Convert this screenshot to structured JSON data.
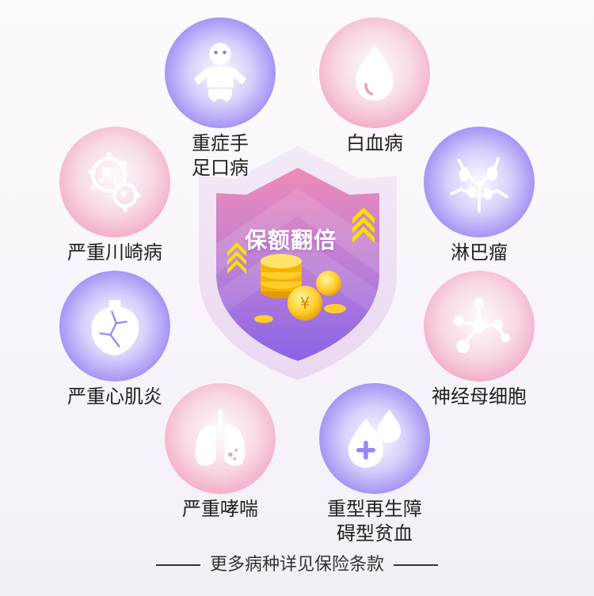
{
  "shield": {
    "title": "保额翻倍"
  },
  "items": [
    {
      "line1": "重症手",
      "line2": "足口病",
      "icon": "baby-icon"
    },
    {
      "line1": "白血病",
      "line2": "",
      "icon": "blood-drop-icon"
    },
    {
      "line1": "严重川崎病",
      "line2": "",
      "icon": "virus-cell-icon"
    },
    {
      "line1": "淋巴瘤",
      "line2": "",
      "icon": "lymph-node-icon"
    },
    {
      "line1": "严重心肌炎",
      "line2": "",
      "icon": "heart-icon"
    },
    {
      "line1": "神经母细胞",
      "line2": "",
      "icon": "molecule-icon"
    },
    {
      "line1": "严重哮喘",
      "line2": "",
      "icon": "lungs-icon"
    },
    {
      "line1": "重型再生障",
      "line2": "碍型贫血",
      "icon": "blood-plus-icon"
    }
  ],
  "footer": {
    "text": "更多病种详见保险条款"
  },
  "colors": {
    "pink": "#ef8fb3",
    "purple": "#7c60ee"
  }
}
